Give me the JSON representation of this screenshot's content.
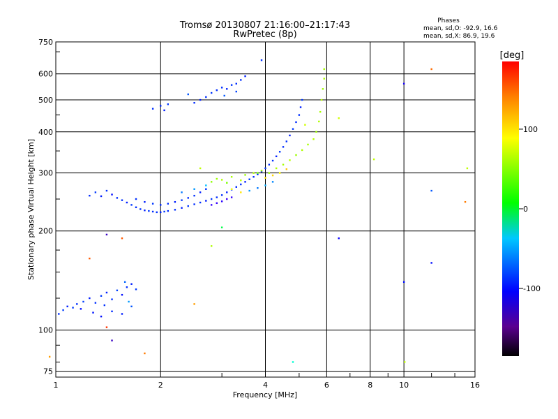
{
  "chart_data": {
    "type": "scatter",
    "title": "Tromsø 20130807 21:16:00–21:17:43",
    "subtitle": "RwPretec (8p)",
    "xlabel": "Frequency [MHz]",
    "ylabel": "Stationary phase Virtual Height [km]",
    "xscale": "log",
    "yscale": "log",
    "xlim": [
      1,
      16
    ],
    "ylim": [
      72,
      750
    ],
    "xticks": [
      1,
      2,
      4,
      6,
      8,
      10,
      16
    ],
    "xtick_labels": [
      "1",
      "2",
      "4",
      "6",
      "8",
      "10",
      "16"
    ],
    "yticks": [
      75,
      100,
      200,
      300,
      400,
      500,
      600,
      750
    ],
    "ytick_labels": [
      "75",
      "100",
      "200",
      "300",
      "400",
      "500",
      "600",
      "750"
    ],
    "grid": true,
    "stats": {
      "header": "Phases",
      "line_o": "mean, sd,O: -92.9, 16.6",
      "line_x": "mean, sd,X:  86.9, 19.6"
    },
    "colorbar": {
      "unit": "[deg]",
      "range": [
        -185,
        185
      ],
      "ticks": [
        100,
        0,
        -100
      ],
      "tick_labels": [
        "100",
        "0",
        "-100"
      ]
    },
    "series": [
      {
        "points": [
          [
            1.02,
            112,
            -90
          ],
          [
            1.05,
            115,
            -85
          ],
          [
            1.08,
            118,
            -95
          ],
          [
            1.12,
            117,
            -88
          ],
          [
            1.15,
            120,
            -90
          ],
          [
            1.18,
            116,
            -100
          ],
          [
            1.2,
            122,
            -85
          ],
          [
            1.25,
            125,
            -95
          ],
          [
            1.3,
            121,
            -90
          ],
          [
            1.35,
            127,
            -88
          ],
          [
            1.4,
            130,
            -95
          ],
          [
            1.45,
            124,
            -90
          ],
          [
            1.5,
            132,
            -85
          ],
          [
            1.55,
            128,
            -100
          ],
          [
            1.6,
            135,
            -90
          ],
          [
            1.65,
            138,
            -95
          ],
          [
            1.7,
            133,
            -88
          ],
          [
            1.35,
            110,
            -100
          ],
          [
            1.45,
            114,
            -92
          ],
          [
            1.55,
            112,
            -95
          ],
          [
            1.65,
            118,
            -80
          ],
          [
            1.28,
            113,
            -98
          ],
          [
            1.38,
            119,
            -90
          ],
          [
            1.58,
            140,
            -75
          ],
          [
            1.62,
            122,
            -60
          ],
          [
            1.25,
            256,
            -92
          ],
          [
            1.3,
            262,
            -88
          ],
          [
            1.35,
            255,
            -95
          ],
          [
            1.4,
            265,
            -90
          ],
          [
            1.45,
            258,
            -100
          ],
          [
            1.5,
            252,
            -92
          ],
          [
            1.55,
            248,
            -90
          ],
          [
            1.6,
            244,
            -95
          ],
          [
            1.65,
            240,
            -88
          ],
          [
            1.7,
            236,
            -92
          ],
          [
            1.75,
            233,
            -90
          ],
          [
            1.8,
            231,
            -95
          ],
          [
            1.85,
            230,
            -88
          ],
          [
            1.9,
            229,
            -92
          ],
          [
            1.95,
            228,
            -90
          ],
          [
            2.0,
            228,
            -95
          ],
          [
            2.05,
            229,
            -88
          ],
          [
            2.1,
            230,
            -92
          ],
          [
            2.2,
            232,
            -90
          ],
          [
            2.3,
            235,
            -95
          ],
          [
            2.4,
            238,
            -88
          ],
          [
            2.5,
            241,
            -92
          ],
          [
            2.6,
            244,
            -90
          ],
          [
            2.7,
            247,
            -95
          ],
          [
            2.8,
            250,
            -88
          ],
          [
            2.9,
            253,
            -92
          ],
          [
            3.0,
            257,
            -90
          ],
          [
            3.1,
            262,
            -95
          ],
          [
            3.2,
            267,
            -88
          ],
          [
            3.3,
            272,
            -92
          ],
          [
            3.4,
            277,
            -90
          ],
          [
            3.5,
            282,
            -95
          ],
          [
            3.6,
            287,
            -88
          ],
          [
            3.7,
            292,
            -92
          ],
          [
            3.8,
            297,
            -90
          ],
          [
            3.9,
            303,
            -95
          ],
          [
            4.0,
            310,
            -88
          ],
          [
            4.1,
            318,
            -92
          ],
          [
            4.2,
            327,
            -90
          ],
          [
            4.3,
            337,
            -95
          ],
          [
            4.4,
            348,
            -88
          ],
          [
            4.5,
            360,
            -92
          ],
          [
            4.6,
            374,
            -90
          ],
          [
            4.7,
            390,
            -95
          ],
          [
            4.8,
            408,
            -88
          ],
          [
            4.9,
            428,
            -92
          ],
          [
            5.0,
            450,
            -90
          ],
          [
            5.05,
            475,
            -95
          ],
          [
            5.1,
            500,
            -88
          ],
          [
            1.7,
            250,
            -90
          ],
          [
            1.8,
            245,
            -95
          ],
          [
            1.9,
            242,
            -88
          ],
          [
            2.0,
            240,
            -92
          ],
          [
            2.1,
            242,
            -90
          ],
          [
            2.2,
            245,
            -95
          ],
          [
            2.3,
            248,
            -88
          ],
          [
            2.4,
            252,
            -92
          ],
          [
            2.5,
            256,
            -90
          ],
          [
            2.6,
            262,
            -95
          ],
          [
            2.7,
            268,
            -88
          ],
          [
            2.3,
            262,
            -70
          ],
          [
            2.5,
            268,
            -60
          ],
          [
            2.7,
            275,
            -50
          ],
          [
            1.9,
            470,
            -90
          ],
          [
            2.0,
            480,
            -92
          ],
          [
            2.05,
            465,
            -95
          ],
          [
            2.1,
            485,
            -88
          ],
          [
            2.5,
            490,
            -92
          ],
          [
            2.6,
            500,
            -95
          ],
          [
            2.7,
            510,
            -90
          ],
          [
            2.8,
            525,
            -88
          ],
          [
            2.9,
            535,
            -92
          ],
          [
            3.0,
            545,
            -90
          ],
          [
            3.1,
            540,
            -95
          ],
          [
            3.2,
            555,
            -88
          ],
          [
            3.3,
            560,
            -92
          ],
          [
            3.4,
            575,
            -90
          ],
          [
            3.5,
            590,
            -95
          ],
          [
            3.3,
            530,
            -85
          ],
          [
            2.4,
            520,
            -80
          ],
          [
            3.9,
            660,
            -90
          ],
          [
            3.05,
            515,
            -80
          ],
          [
            2.8,
            240,
            -135
          ],
          [
            2.9,
            243,
            -140
          ],
          [
            3.0,
            246,
            -130
          ],
          [
            3.1,
            250,
            -145
          ],
          [
            3.2,
            253,
            -135
          ],
          [
            3.6,
            265,
            -60
          ],
          [
            3.8,
            270,
            -70
          ],
          [
            4.0,
            275,
            -55
          ],
          [
            4.2,
            282,
            -65
          ],
          [
            2.8,
            282,
            80
          ],
          [
            2.9,
            288,
            85
          ],
          [
            3.0,
            286,
            90
          ],
          [
            3.1,
            280,
            75
          ],
          [
            3.2,
            292,
            88
          ],
          [
            3.4,
            285,
            92
          ],
          [
            3.5,
            296,
            85
          ],
          [
            3.7,
            300,
            90
          ],
          [
            3.9,
            305,
            88
          ],
          [
            4.1,
            300,
            85
          ],
          [
            4.3,
            310,
            90
          ],
          [
            4.5,
            318,
            88
          ],
          [
            4.7,
            328,
            92
          ],
          [
            4.9,
            340,
            85
          ],
          [
            5.1,
            352,
            90
          ],
          [
            5.3,
            366,
            88
          ],
          [
            5.5,
            380,
            92
          ],
          [
            5.6,
            400,
            85
          ],
          [
            5.7,
            430,
            90
          ],
          [
            5.75,
            460,
            88
          ],
          [
            5.8,
            500,
            92
          ],
          [
            5.85,
            540,
            85
          ],
          [
            5.9,
            580,
            90
          ],
          [
            5.9,
            620,
            88
          ],
          [
            4.0,
            290,
            120
          ],
          [
            4.2,
            295,
            125
          ],
          [
            4.4,
            300,
            115
          ],
          [
            4.6,
            308,
            130
          ],
          [
            3.2,
            268,
            110
          ],
          [
            3.4,
            262,
            120
          ],
          [
            2.6,
            310,
            95
          ],
          [
            5.2,
            420,
            100
          ],
          [
            1.8,
            85,
            150
          ],
          [
            0.96,
            83,
            140
          ],
          [
            1.55,
            190,
            160
          ],
          [
            1.4,
            102,
            170
          ],
          [
            1.45,
            93,
            -150
          ],
          [
            2.8,
            180,
            90
          ],
          [
            3.8,
            300,
            70
          ],
          [
            4.8,
            80,
            -20
          ],
          [
            6.5,
            440,
            100
          ],
          [
            6.5,
            190,
            -110
          ],
          [
            8.2,
            330,
            95
          ],
          [
            10.0,
            140,
            -100
          ],
          [
            10.0,
            560,
            -120
          ],
          [
            10.05,
            80,
            95
          ],
          [
            12.0,
            620,
            155
          ],
          [
            12.0,
            265,
            -80
          ],
          [
            12.0,
            160,
            -100
          ],
          [
            15.0,
            245,
            150
          ],
          [
            15.2,
            310,
            95
          ],
          [
            3.0,
            205,
            20
          ],
          [
            2.5,
            120,
            140
          ],
          [
            1.25,
            165,
            160
          ],
          [
            1.4,
            195,
            -150
          ]
        ]
      }
    ]
  }
}
